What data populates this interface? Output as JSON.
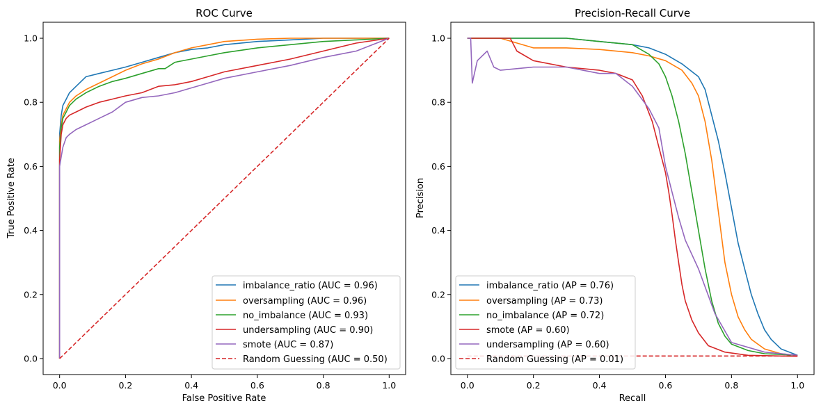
{
  "chart_data": [
    {
      "type": "line",
      "title": "ROC Curve",
      "xlabel": "False Positive Rate",
      "ylabel": "True Positive Rate",
      "xlim": [
        -0.05,
        1.05
      ],
      "ylim": [
        -0.05,
        1.05
      ],
      "xticks": [
        "0.0",
        "0.2",
        "0.4",
        "0.6",
        "0.8",
        "1.0"
      ],
      "yticks": [
        "0.0",
        "0.2",
        "0.4",
        "0.6",
        "0.8",
        "1.0"
      ],
      "grid": false,
      "legend_position": "bottom-right",
      "series": [
        {
          "name": "imbalance_ratio (AUC = 0.96)",
          "color": "#1f77b4",
          "dash": false,
          "x": [
            0,
            0.0,
            0.005,
            0.01,
            0.02,
            0.03,
            0.05,
            0.08,
            0.12,
            0.16,
            0.2,
            0.25,
            0.3,
            0.35,
            0.4,
            0.45,
            0.5,
            0.6,
            0.7,
            0.8,
            0.9,
            1.0
          ],
          "y": [
            0,
            0.7,
            0.76,
            0.79,
            0.81,
            0.83,
            0.85,
            0.88,
            0.89,
            0.9,
            0.91,
            0.925,
            0.94,
            0.955,
            0.965,
            0.97,
            0.98,
            0.99,
            0.995,
            1.0,
            1.0,
            1.0
          ]
        },
        {
          "name": "oversampling (AUC = 0.96)",
          "color": "#ff7f0e",
          "dash": false,
          "x": [
            0,
            0.0,
            0.005,
            0.01,
            0.02,
            0.03,
            0.05,
            0.08,
            0.12,
            0.16,
            0.2,
            0.25,
            0.3,
            0.35,
            0.4,
            0.45,
            0.5,
            0.6,
            0.7,
            0.8,
            0.9,
            1.0
          ],
          "y": [
            0,
            0.68,
            0.73,
            0.76,
            0.78,
            0.8,
            0.82,
            0.84,
            0.86,
            0.88,
            0.9,
            0.92,
            0.935,
            0.955,
            0.97,
            0.98,
            0.99,
            0.997,
            1.0,
            1.0,
            1.0,
            1.0
          ]
        },
        {
          "name": "no_imbalance (AUC = 0.93)",
          "color": "#2ca02c",
          "dash": false,
          "x": [
            0,
            0.0,
            0.005,
            0.01,
            0.02,
            0.03,
            0.05,
            0.08,
            0.12,
            0.16,
            0.2,
            0.25,
            0.3,
            0.32,
            0.35,
            0.4,
            0.45,
            0.5,
            0.6,
            0.7,
            0.8,
            0.9,
            1.0
          ],
          "y": [
            0,
            0.66,
            0.72,
            0.75,
            0.77,
            0.79,
            0.81,
            0.83,
            0.85,
            0.865,
            0.875,
            0.89,
            0.905,
            0.905,
            0.925,
            0.935,
            0.945,
            0.955,
            0.97,
            0.98,
            0.99,
            0.995,
            1.0
          ]
        },
        {
          "name": "undersampling (AUC = 0.90)",
          "color": "#d62728",
          "dash": false,
          "x": [
            0,
            0.0,
            0.005,
            0.01,
            0.02,
            0.03,
            0.05,
            0.08,
            0.12,
            0.16,
            0.2,
            0.25,
            0.3,
            0.35,
            0.4,
            0.45,
            0.5,
            0.6,
            0.7,
            0.8,
            0.9,
            1.0
          ],
          "y": [
            0,
            0.62,
            0.7,
            0.73,
            0.75,
            0.76,
            0.77,
            0.785,
            0.8,
            0.81,
            0.82,
            0.83,
            0.85,
            0.855,
            0.865,
            0.88,
            0.895,
            0.915,
            0.935,
            0.96,
            0.985,
            1.0
          ]
        },
        {
          "name": "smote (AUC = 0.87)",
          "color": "#9467bd",
          "dash": false,
          "x": [
            0,
            0.0,
            0.005,
            0.01,
            0.02,
            0.03,
            0.05,
            0.08,
            0.12,
            0.16,
            0.2,
            0.25,
            0.3,
            0.35,
            0.4,
            0.45,
            0.5,
            0.6,
            0.7,
            0.8,
            0.9,
            0.95,
            1.0
          ],
          "y": [
            0,
            0.6,
            0.63,
            0.66,
            0.69,
            0.7,
            0.715,
            0.73,
            0.75,
            0.77,
            0.8,
            0.815,
            0.82,
            0.83,
            0.845,
            0.86,
            0.875,
            0.895,
            0.915,
            0.94,
            0.96,
            0.98,
            1.0
          ]
        },
        {
          "name": "Random Guessing (AUC = 0.50)",
          "color": "#d62728",
          "dash": true,
          "x": [
            0,
            1
          ],
          "y": [
            0,
            1
          ]
        }
      ]
    },
    {
      "type": "line",
      "title": "Precision-Recall Curve",
      "xlabel": "Recall",
      "ylabel": "Precision",
      "xlim": [
        -0.05,
        1.05
      ],
      "ylim": [
        -0.05,
        1.05
      ],
      "xticks": [
        "0.0",
        "0.2",
        "0.4",
        "0.6",
        "0.8",
        "1.0"
      ],
      "yticks": [
        "0.0",
        "0.2",
        "0.4",
        "0.6",
        "0.8",
        "1.0"
      ],
      "grid": false,
      "legend_position": "bottom-left",
      "series": [
        {
          "name": "imbalance_ratio (AP = 0.76)",
          "color": "#1f77b4",
          "dash": false,
          "x": [
            0,
            0.1,
            0.2,
            0.3,
            0.4,
            0.5,
            0.55,
            0.6,
            0.65,
            0.7,
            0.72,
            0.74,
            0.76,
            0.78,
            0.8,
            0.82,
            0.84,
            0.86,
            0.88,
            0.9,
            0.92,
            0.95,
            1.0
          ],
          "y": [
            1.0,
            1.0,
            1.0,
            1.0,
            0.99,
            0.98,
            0.97,
            0.95,
            0.92,
            0.88,
            0.84,
            0.76,
            0.68,
            0.58,
            0.47,
            0.36,
            0.28,
            0.2,
            0.14,
            0.09,
            0.06,
            0.03,
            0.01
          ]
        },
        {
          "name": "oversampling (AP = 0.73)",
          "color": "#ff7f0e",
          "dash": false,
          "x": [
            0,
            0.1,
            0.2,
            0.3,
            0.4,
            0.5,
            0.55,
            0.6,
            0.65,
            0.68,
            0.7,
            0.72,
            0.74,
            0.76,
            0.78,
            0.8,
            0.82,
            0.84,
            0.86,
            0.9,
            0.95,
            1.0
          ],
          "y": [
            1.0,
            1.0,
            0.97,
            0.97,
            0.965,
            0.955,
            0.945,
            0.93,
            0.9,
            0.86,
            0.82,
            0.74,
            0.62,
            0.46,
            0.3,
            0.2,
            0.13,
            0.09,
            0.06,
            0.03,
            0.015,
            0.01
          ]
        },
        {
          "name": "no_imbalance (AP = 0.72)",
          "color": "#2ca02c",
          "dash": false,
          "x": [
            0,
            0.1,
            0.2,
            0.3,
            0.4,
            0.5,
            0.55,
            0.58,
            0.6,
            0.62,
            0.64,
            0.66,
            0.68,
            0.7,
            0.72,
            0.74,
            0.76,
            0.78,
            0.8,
            0.85,
            0.9,
            1.0
          ],
          "y": [
            1.0,
            1.0,
            1.0,
            1.0,
            0.99,
            0.98,
            0.95,
            0.92,
            0.88,
            0.82,
            0.74,
            0.64,
            0.52,
            0.4,
            0.28,
            0.18,
            0.11,
            0.07,
            0.045,
            0.025,
            0.015,
            0.01
          ]
        },
        {
          "name": "smote (AP = 0.60)",
          "color": "#d62728",
          "dash": false,
          "x": [
            0,
            0.13,
            0.15,
            0.2,
            0.3,
            0.4,
            0.45,
            0.5,
            0.53,
            0.56,
            0.58,
            0.6,
            0.61,
            0.62,
            0.63,
            0.64,
            0.65,
            0.66,
            0.68,
            0.7,
            0.73,
            0.78,
            0.85,
            0.95,
            1.0
          ],
          "y": [
            1.0,
            1.0,
            0.96,
            0.93,
            0.91,
            0.9,
            0.89,
            0.87,
            0.82,
            0.74,
            0.66,
            0.58,
            0.52,
            0.45,
            0.37,
            0.3,
            0.23,
            0.18,
            0.12,
            0.08,
            0.04,
            0.02,
            0.01,
            0.008,
            0.007
          ]
        },
        {
          "name": "undersampling (AP = 0.60)",
          "color": "#9467bd",
          "dash": false,
          "x": [
            0,
            0.01,
            0.015,
            0.03,
            0.06,
            0.08,
            0.1,
            0.2,
            0.3,
            0.4,
            0.45,
            0.5,
            0.55,
            0.58,
            0.6,
            0.62,
            0.64,
            0.66,
            0.7,
            0.75,
            0.8,
            0.9,
            1.0
          ],
          "y": [
            1.0,
            1.0,
            0.86,
            0.93,
            0.96,
            0.91,
            0.9,
            0.91,
            0.91,
            0.89,
            0.89,
            0.85,
            0.78,
            0.72,
            0.6,
            0.52,
            0.44,
            0.37,
            0.28,
            0.14,
            0.05,
            0.02,
            0.01
          ]
        },
        {
          "name": "Random Guessing (AP = 0.01)",
          "color": "#d62728",
          "dash": true,
          "x": [
            0,
            1
          ],
          "y": [
            0.008,
            0.008
          ]
        }
      ]
    }
  ]
}
